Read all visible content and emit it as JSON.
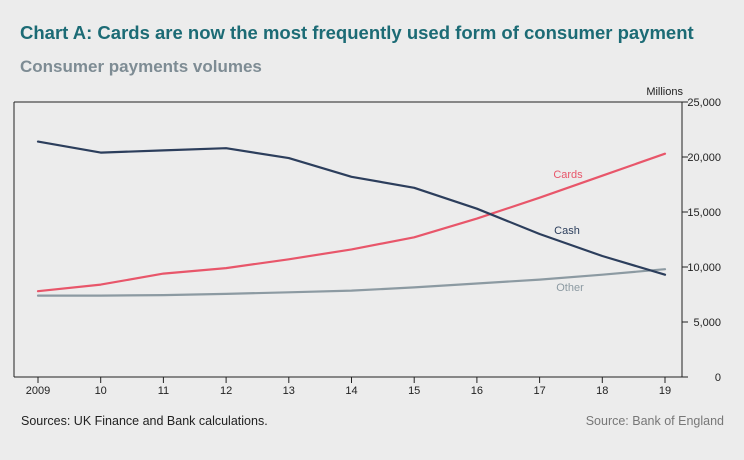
{
  "title": "Chart A: Cards are now the most frequently used form of consumer payment",
  "subtitle": "Consumer payments volumes",
  "sources": "Sources: UK Finance and Bank calculations.",
  "credit": "Source: Bank of England",
  "colors": {
    "title": "#1c6b75",
    "subtitle": "#7e8c94",
    "cards": "#e8566a",
    "cash": "#2c3e5c",
    "other": "#8c9aa2",
    "axis": "#222222"
  },
  "chart_data": {
    "type": "line",
    "title": "Chart A: Cards are now the most frequently used form of consumer payment",
    "subtitle": "Consumer payments volumes",
    "ylabel": "Millions",
    "xlabel": "",
    "x": [
      "2009",
      "10",
      "11",
      "12",
      "13",
      "14",
      "15",
      "16",
      "17",
      "18",
      "19"
    ],
    "ylim": [
      0,
      25000
    ],
    "yticks": [
      0,
      5000,
      10000,
      15000,
      20000,
      25000
    ],
    "ytick_labels": [
      "0",
      "5,000",
      "10,000",
      "15,000",
      "20,000",
      "25,000"
    ],
    "y_axis_side": "right",
    "grid": false,
    "legend": "inline labels",
    "series": [
      {
        "name": "Cash",
        "color": "#2c3e5c",
        "values": [
          21400,
          20400,
          20600,
          20800,
          19900,
          18200,
          17200,
          15300,
          13000,
          11000,
          9300
        ]
      },
      {
        "name": "Cards",
        "color": "#e8566a",
        "values": [
          7800,
          8400,
          9400,
          9900,
          10700,
          11600,
          12700,
          14400,
          16300,
          18300,
          20300
        ]
      },
      {
        "name": "Other",
        "color": "#8c9aa2",
        "values": [
          7400,
          7400,
          7450,
          7550,
          7700,
          7850,
          8150,
          8500,
          8850,
          9300,
          9800
        ]
      }
    ]
  }
}
